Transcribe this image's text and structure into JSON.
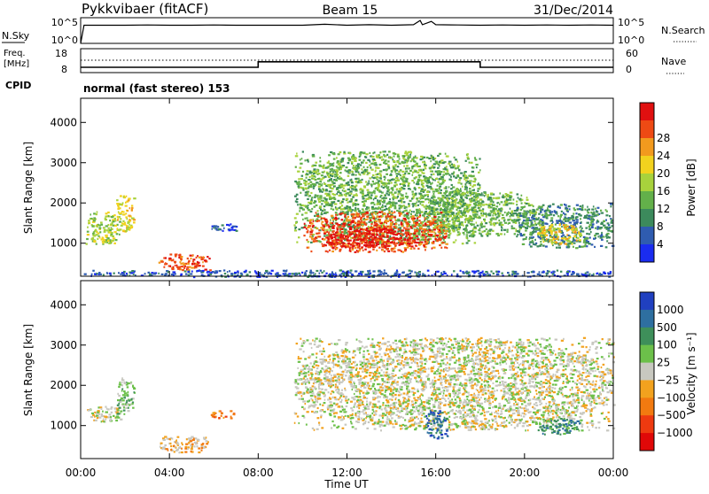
{
  "header": {
    "title": "Pykkvibaer (fitACF)",
    "beam": "Beam 15",
    "date": "31/Dec/2014"
  },
  "panels": {
    "nsky": {
      "label": "N.Sky",
      "tick_top": "10^5",
      "tick_bottom": "10^0",
      "right_label": "N.Search",
      "right_tick_top": "10^5",
      "right_tick_bottom": "10^0"
    },
    "freq": {
      "label_line1": "Freq.",
      "label_line2": "[MHz]",
      "tick_top": "18",
      "tick_bottom": "8",
      "right_label": "Nave",
      "right_tick_top": "60",
      "right_tick_bottom": "0"
    },
    "cpid": {
      "label": "CPID",
      "text": "normal (fast stereo) 153"
    }
  },
  "chart_data": [
    {
      "type": "line",
      "name": "nsky",
      "x_unit": "hours UT",
      "ylim": [
        0,
        5
      ],
      "y_scale": "log10",
      "x": [
        0,
        0.15,
        1,
        2,
        3,
        4,
        5,
        6,
        7,
        8,
        9,
        10,
        11,
        12,
        13,
        14,
        15,
        15.3,
        15.4,
        15.8,
        16,
        17,
        18,
        19,
        20,
        21,
        22,
        23,
        24
      ],
      "values": [
        0,
        3.8,
        3.8,
        3.8,
        3.85,
        3.8,
        3.8,
        3.85,
        3.8,
        3.8,
        3.8,
        3.8,
        4.0,
        3.8,
        3.9,
        3.8,
        3.9,
        4.8,
        3.9,
        4.6,
        3.9,
        3.85,
        3.8,
        3.85,
        3.8,
        3.85,
        3.8,
        3.85,
        3.8
      ]
    },
    {
      "type": "line",
      "name": "freq",
      "x_unit": "hours UT",
      "ylim": [
        8,
        18
      ],
      "x": [
        0,
        8,
        8,
        18,
        18,
        24
      ],
      "values": [
        10,
        10,
        12.5,
        12.5,
        10,
        10
      ]
    },
    {
      "type": "heatmap",
      "name": "power",
      "xlabel": "",
      "ylabel": "Slant Range [km]",
      "xlim": [
        0,
        24
      ],
      "ylim": [
        180,
        4600
      ],
      "yticks": [
        1000,
        2000,
        3000,
        4000
      ],
      "colorbar_label": "Power [dB]",
      "colorbar_ticks": [
        "4",
        "8",
        "12",
        "16",
        "20",
        "24",
        "28"
      ],
      "colorbar_colors": [
        "#1a2cf0",
        "#2f5cb0",
        "#3c8a5c",
        "#63b04a",
        "#a8d23c",
        "#f2d21e",
        "#f29a1e",
        "#ee4a14",
        "#e01010"
      ],
      "regions": [
        {
          "x0": 0.2,
          "x1": 1.8,
          "y0": 1000,
          "y1": 1800,
          "level": 4
        },
        {
          "x0": 1.6,
          "x1": 2.4,
          "y0": 1300,
          "y1": 2200,
          "level": 5
        },
        {
          "x0": 3.5,
          "x1": 5.8,
          "y0": 350,
          "y1": 750,
          "level": 7
        },
        {
          "x0": 5.8,
          "x1": 7.0,
          "y0": 1300,
          "y1": 1500,
          "level": 1
        },
        {
          "x0": 9.6,
          "x1": 18.0,
          "y0": 1000,
          "y1": 3300,
          "level": 3
        },
        {
          "x0": 10.0,
          "x1": 16.5,
          "y0": 800,
          "y1": 1800,
          "level": 7
        },
        {
          "x0": 11.0,
          "x1": 15.0,
          "y0": 900,
          "y1": 1400,
          "level": 8
        },
        {
          "x0": 15.5,
          "x1": 20.5,
          "y0": 1200,
          "y1": 2300,
          "level": 3
        },
        {
          "x0": 19.5,
          "x1": 24.0,
          "y0": 900,
          "y1": 2000,
          "level": 2
        },
        {
          "x0": 20.5,
          "x1": 22.5,
          "y0": 1000,
          "y1": 1500,
          "level": 5
        },
        {
          "x0": 0.0,
          "x1": 24.0,
          "y0": 180,
          "y1": 350,
          "level": 1
        }
      ]
    },
    {
      "type": "heatmap",
      "name": "velocity",
      "xlabel": "Time UT",
      "ylabel": "Slant Range [km]",
      "xlim": [
        0,
        24
      ],
      "ylim": [
        180,
        4600
      ],
      "yticks": [
        1000,
        2000,
        3000,
        4000
      ],
      "xticks": [
        "00:00",
        "04:00",
        "08:00",
        "12:00",
        "16:00",
        "20:00",
        "00:00"
      ],
      "colorbar_label": "Velocity [m s⁻¹]",
      "colorbar_ticks": [
        "1000",
        "500",
        "100",
        "25",
        "−25",
        "−100",
        "−500",
        "−1000"
      ],
      "colorbar_colors": [
        "#2040c0",
        "#2e6fa0",
        "#3e8f5a",
        "#6cc04a",
        "#c8c8c0",
        "#f2a21e",
        "#f27a10",
        "#ee3a10",
        "#e00808"
      ],
      "regions": [
        {
          "x0": 0.2,
          "x1": 1.8,
          "y0": 1100,
          "y1": 1500,
          "level": 4
        },
        {
          "x0": 1.6,
          "x1": 2.4,
          "y0": 1300,
          "y1": 2200,
          "level": 3
        },
        {
          "x0": 3.5,
          "x1": 5.8,
          "y0": 350,
          "y1": 750,
          "level": 5
        },
        {
          "x0": 5.8,
          "x1": 7.0,
          "y0": 1200,
          "y1": 1400,
          "level": 6
        },
        {
          "x0": 9.6,
          "x1": 24.0,
          "y0": 900,
          "y1": 3200,
          "level": 4
        },
        {
          "x0": 15.5,
          "x1": 16.5,
          "y0": 700,
          "y1": 1400,
          "level": 1
        },
        {
          "x0": 20.5,
          "x1": 22.5,
          "y0": 800,
          "y1": 1200,
          "level": 2
        }
      ]
    }
  ]
}
